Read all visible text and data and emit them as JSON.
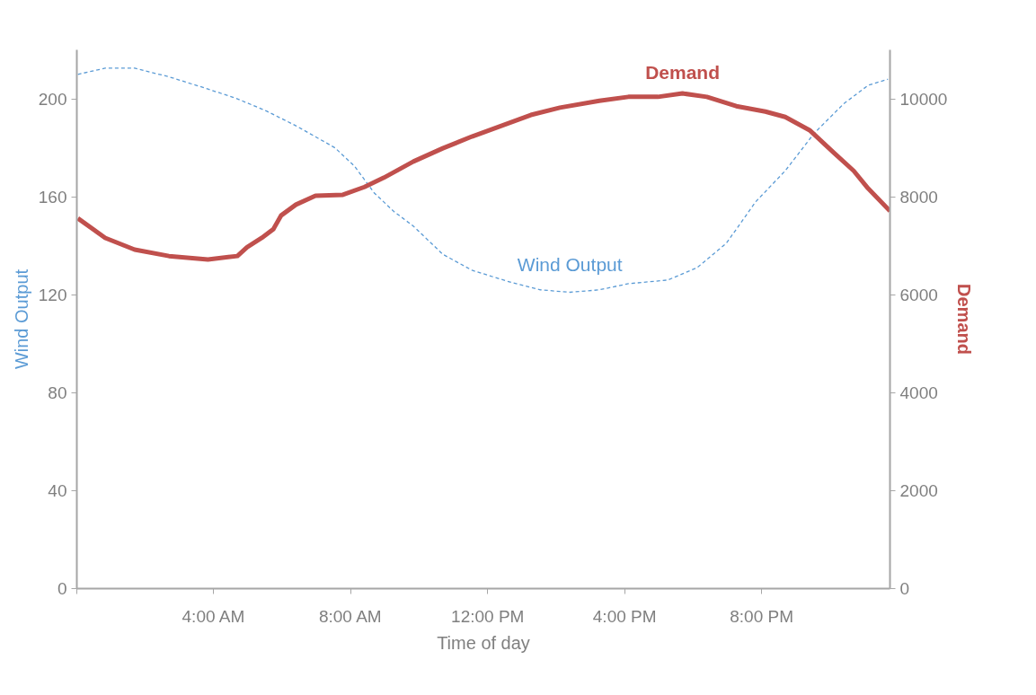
{
  "chart_data": {
    "type": "line",
    "xlabel": "Time of day",
    "ylabel": "Wind Output",
    "y2label": "Demand",
    "xlim": [
      0,
      23.75
    ],
    "xticks": [
      {
        "value": 0,
        "label": null
      },
      {
        "value": 4,
        "label": "4:00 AM"
      },
      {
        "value": 8,
        "label": "8:00 AM"
      },
      {
        "value": 12,
        "label": "12:00 PM"
      },
      {
        "value": 16,
        "label": "4:00 PM"
      },
      {
        "value": 20,
        "label": "8:00 PM"
      }
    ],
    "ylim": [
      0,
      220
    ],
    "yticks": [
      0,
      40,
      80,
      120,
      160,
      200
    ],
    "y2lim": [
      0,
      11000
    ],
    "y2ticks": [
      0,
      2000,
      4000,
      6000,
      8000,
      10000
    ],
    "grid": false,
    "series": [
      {
        "name": "Wind Output",
        "color": "#5b9bd5",
        "axis": "y",
        "line_style": "dashed",
        "x": [
          0.03,
          0.83,
          1.69,
          2.69,
          3.83,
          4.69,
          5.54,
          6.4,
          7.54,
          8.11,
          8.69,
          9.26,
          9.83,
          10.69,
          11.54,
          12.69,
          13.54,
          14.4,
          15.26,
          16.11,
          17.26,
          18.11,
          18.97,
          19.83,
          20.69,
          21.54,
          22.4,
          23.11,
          23.69
        ],
        "values": [
          210,
          212.5,
          212.5,
          209,
          204,
          200,
          195,
          189,
          180,
          172.5,
          161.5,
          154,
          148,
          136.5,
          130,
          125,
          122,
          121,
          122,
          124.5,
          126,
          131,
          141,
          158,
          170.6,
          186,
          198,
          205.5,
          208
        ]
      },
      {
        "name": "Demand",
        "color": "#c0504d",
        "axis": "y2",
        "line_style": "solid",
        "x": [
          0.03,
          0.83,
          1.69,
          2.69,
          3.83,
          4.69,
          4.97,
          5.4,
          5.74,
          5.97,
          6.4,
          6.97,
          7.77,
          8.4,
          8.97,
          9.83,
          10.69,
          11.54,
          12.4,
          13.26,
          14.11,
          15.26,
          16.11,
          16.97,
          17.69,
          18.4,
          19.26,
          20.11,
          20.69,
          21.4,
          22.11,
          22.69,
          23.11,
          23.75
        ],
        "values": [
          7560,
          7160,
          6920,
          6790,
          6720,
          6790,
          6970,
          7160,
          7340,
          7620,
          7840,
          8020,
          8040,
          8200,
          8390,
          8720,
          8990,
          9230,
          9450,
          9670,
          9820,
          9960,
          10040,
          10040,
          10110,
          10040,
          9850,
          9740,
          9630,
          9360,
          8900,
          8530,
          8170,
          7710
        ]
      }
    ]
  }
}
